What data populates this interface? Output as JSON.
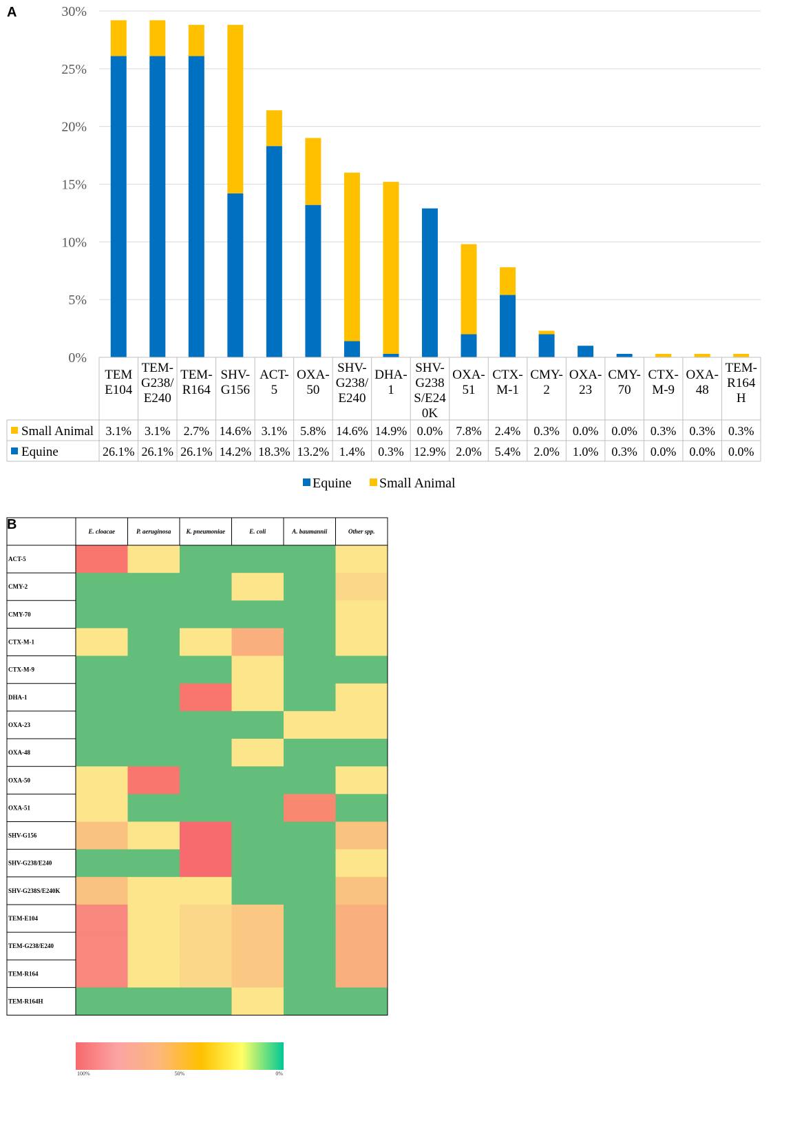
{
  "chart_data": [
    {
      "panel": "A",
      "type": "bar",
      "stacked": true,
      "categories": [
        [
          "TEM",
          "E104"
        ],
        [
          "TEM-",
          "G238/",
          "E240"
        ],
        [
          "TEM-",
          "R164"
        ],
        [
          "SHV-",
          "G156"
        ],
        [
          "ACT-",
          "5"
        ],
        [
          "OXA-",
          "50"
        ],
        [
          "SHV-",
          "G238/",
          "E240"
        ],
        [
          "DHA-",
          "1"
        ],
        [
          "SHV-",
          "G238",
          "S/E24",
          "0K"
        ],
        [
          "OXA-",
          "51"
        ],
        [
          "CTX-",
          "M-1"
        ],
        [
          "CMY-",
          "2"
        ],
        [
          "OXA-",
          "23"
        ],
        [
          "CMY-",
          "70"
        ],
        [
          "CTX-",
          "M-9"
        ],
        [
          "OXA-",
          "48"
        ],
        [
          "TEM-",
          "R164",
          "H"
        ]
      ],
      "series": [
        {
          "name": "Equine",
          "color": "#0070C0",
          "values": [
            26.1,
            26.1,
            26.1,
            14.2,
            18.3,
            13.2,
            1.4,
            0.3,
            12.9,
            2.0,
            5.4,
            2.0,
            1.0,
            0.3,
            0.0,
            0.0,
            0.0
          ],
          "labels": [
            "26.1%",
            "26.1%",
            "26.1%",
            "14.2%",
            "18.3%",
            "13.2%",
            "1.4%",
            "0.3%",
            "12.9%",
            "2.0%",
            "5.4%",
            "2.0%",
            "1.0%",
            "0.3%",
            "0.0%",
            "0.0%",
            "0.0%"
          ]
        },
        {
          "name": "Small Animal",
          "color": "#FFC000",
          "values": [
            3.1,
            3.1,
            2.7,
            14.6,
            3.1,
            5.8,
            14.6,
            14.9,
            0.0,
            7.8,
            2.4,
            0.3,
            0.0,
            0.0,
            0.3,
            0.3,
            0.3
          ],
          "labels": [
            "3.1%",
            "3.1%",
            "2.7%",
            "14.6%",
            "3.1%",
            "5.8%",
            "14.6%",
            "14.9%",
            "0.0%",
            "7.8%",
            "2.4%",
            "0.3%",
            "0.0%",
            "0.0%",
            "0.3%",
            "0.3%",
            "0.3%"
          ]
        }
      ],
      "table_order": [
        "Small Animal",
        "Equine"
      ],
      "yticks": [
        "0%",
        "5%",
        "10%",
        "15%",
        "20%",
        "25%",
        "30%"
      ],
      "ylim": [
        0,
        30
      ],
      "grid": true,
      "legend": [
        "Equine",
        "Small Animal"
      ],
      "legend_position": "bottom"
    },
    {
      "panel": "B",
      "type": "heatmap",
      "columns": [
        "E. cloacae",
        "P. aeruginosa",
        "K. pneumoniae",
        "E. coli",
        "A. baumannii",
        "Other spp."
      ],
      "rows": [
        "ACT-5",
        "CMY-2",
        "CMY-70",
        "CTX-M-1",
        "CTX-M-9",
        "DHA-1",
        "OXA-23",
        "OXA-48",
        "OXA-50",
        "OXA-51",
        "SHV-G156",
        "SHV-G238/E240",
        "SHV-G238S/E240K",
        "TEM-E104",
        "TEM-G238/E240",
        "TEM-R164",
        "TEM-R164H"
      ],
      "cell_colors": [
        [
          "#F8766D",
          "#FCE58A",
          "#63BE7B",
          "#63BE7B",
          "#63BE7B",
          "#FCE58A"
        ],
        [
          "#63BE7B",
          "#63BE7B",
          "#63BE7B",
          "#FCE58A",
          "#63BE7B",
          "#FBD889"
        ],
        [
          "#63BE7B",
          "#63BE7B",
          "#63BE7B",
          "#63BE7B",
          "#63BE7B",
          "#FCE58A"
        ],
        [
          "#FCE58A",
          "#63BE7B",
          "#FCE58A",
          "#F9B07E",
          "#63BE7B",
          "#FCE58A"
        ],
        [
          "#63BE7B",
          "#63BE7B",
          "#63BE7B",
          "#FCE58A",
          "#63BE7B",
          "#63BE7B"
        ],
        [
          "#63BE7B",
          "#63BE7B",
          "#F8766D",
          "#FCE58A",
          "#63BE7B",
          "#FCE58A"
        ],
        [
          "#63BE7B",
          "#63BE7B",
          "#63BE7B",
          "#63BE7B",
          "#FCE58A",
          "#FCE58A"
        ],
        [
          "#63BE7B",
          "#63BE7B",
          "#63BE7B",
          "#FCE58A",
          "#63BE7B",
          "#63BE7B"
        ],
        [
          "#FCE58A",
          "#F8766D",
          "#63BE7B",
          "#63BE7B",
          "#63BE7B",
          "#FCE58A"
        ],
        [
          "#FCE58A",
          "#63BE7B",
          "#63BE7B",
          "#63BE7B",
          "#F8886F",
          "#63BE7B"
        ],
        [
          "#FAC27F",
          "#FCE58A",
          "#F76B6E",
          "#63BE7B",
          "#63BE7B",
          "#FAC27F"
        ],
        [
          "#63BE7B",
          "#63BE7B",
          "#F76B6E",
          "#63BE7B",
          "#63BE7B",
          "#FCE58A"
        ],
        [
          "#FAC27F",
          "#FCE58A",
          "#FCE58A",
          "#63BE7B",
          "#63BE7B",
          "#FAC27F"
        ],
        [
          "#F8877D",
          "#FCE58A",
          "#FBD889",
          "#FAC883",
          "#63BE7B",
          "#F9AF7E"
        ],
        [
          "#F8877D",
          "#FCE58A",
          "#FBD889",
          "#FAC883",
          "#63BE7B",
          "#F9AF7E"
        ],
        [
          "#F8877D",
          "#FCE58A",
          "#FBD889",
          "#FAC883",
          "#63BE7B",
          "#F9AF7E"
        ],
        [
          "#63BE7B",
          "#63BE7B",
          "#63BE7B",
          "#FCE58A",
          "#63BE7B",
          "#63BE7B"
        ]
      ],
      "color_scale": {
        "stops": [
          "#F8696B",
          "#FBA3A3",
          "#FDB77C",
          "#FFC000",
          "#FFFF66",
          "#00C896"
        ],
        "labels": [
          "100%",
          "50%",
          "0%"
        ]
      }
    }
  ]
}
